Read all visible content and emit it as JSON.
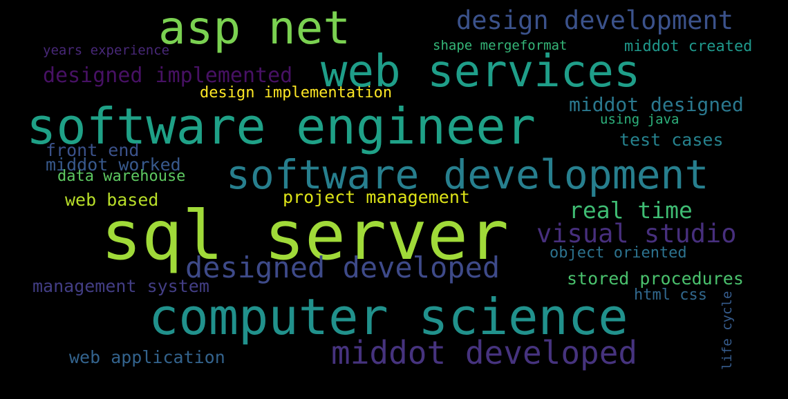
{
  "words": [
    {
      "key": "sql-server",
      "text": "sql server",
      "color": "#a0da39"
    },
    {
      "key": "software-engineer",
      "text": "software engineer",
      "color": "#1fa187"
    },
    {
      "key": "computer-science",
      "text": "computer science",
      "color": "#21918c"
    },
    {
      "key": "software-development",
      "text": "software development",
      "color": "#277f8e"
    },
    {
      "key": "web-services",
      "text": "web services",
      "color": "#1f9e89"
    },
    {
      "key": "asp-net",
      "text": "asp net",
      "color": "#7ad151"
    },
    {
      "key": "middot-developed",
      "text": "middot developed",
      "color": "#46337e"
    },
    {
      "key": "designed-developed",
      "text": "designed developed",
      "color": "#3e4a89"
    },
    {
      "key": "design-development",
      "text": "design development",
      "color": "#3b528b"
    },
    {
      "key": "visual-studio",
      "text": "visual studio",
      "color": "#472f7d"
    },
    {
      "key": "designed-implemented",
      "text": "designed implemented",
      "color": "#471164"
    },
    {
      "key": "real-time",
      "text": "real time",
      "color": "#3fbc73"
    },
    {
      "key": "middot-designed",
      "text": "middot designed",
      "color": "#2a788e"
    },
    {
      "key": "project-management",
      "text": "project management",
      "color": "#dde318"
    },
    {
      "key": "management-system",
      "text": "management system",
      "color": "#433e85"
    },
    {
      "key": "web-application",
      "text": "web application",
      "color": "#33638d"
    },
    {
      "key": "stored-procedures",
      "text": "stored procedures",
      "color": "#4ac16d"
    },
    {
      "key": "design-implementation",
      "text": "design implementation",
      "color": "#fde725"
    },
    {
      "key": "web-based",
      "text": "web based",
      "color": "#b8de29"
    },
    {
      "key": "test-cases",
      "text": "test cases",
      "color": "#26828e"
    },
    {
      "key": "front-end",
      "text": "front end",
      "color": "#3b528b"
    },
    {
      "key": "middot-worked",
      "text": "middot worked",
      "color": "#38598c"
    },
    {
      "key": "object-oriented",
      "text": "object oriented",
      "color": "#2c728e"
    },
    {
      "key": "middot-created",
      "text": "middot created",
      "color": "#1f988b"
    },
    {
      "key": "data-warehouse",
      "text": "data warehouse",
      "color": "#5ec962"
    },
    {
      "key": "html-css",
      "text": "html css",
      "color": "#31688e"
    },
    {
      "key": "years-experience",
      "text": "years experience",
      "color": "#482878"
    },
    {
      "key": "shape-mergeformat",
      "text": "shape mergeformat",
      "color": "#35b779"
    },
    {
      "key": "using-java",
      "text": "using java",
      "color": "#2db27d"
    },
    {
      "key": "life-cycle",
      "text": "life cycle",
      "color": "#365c8d"
    }
  ]
}
